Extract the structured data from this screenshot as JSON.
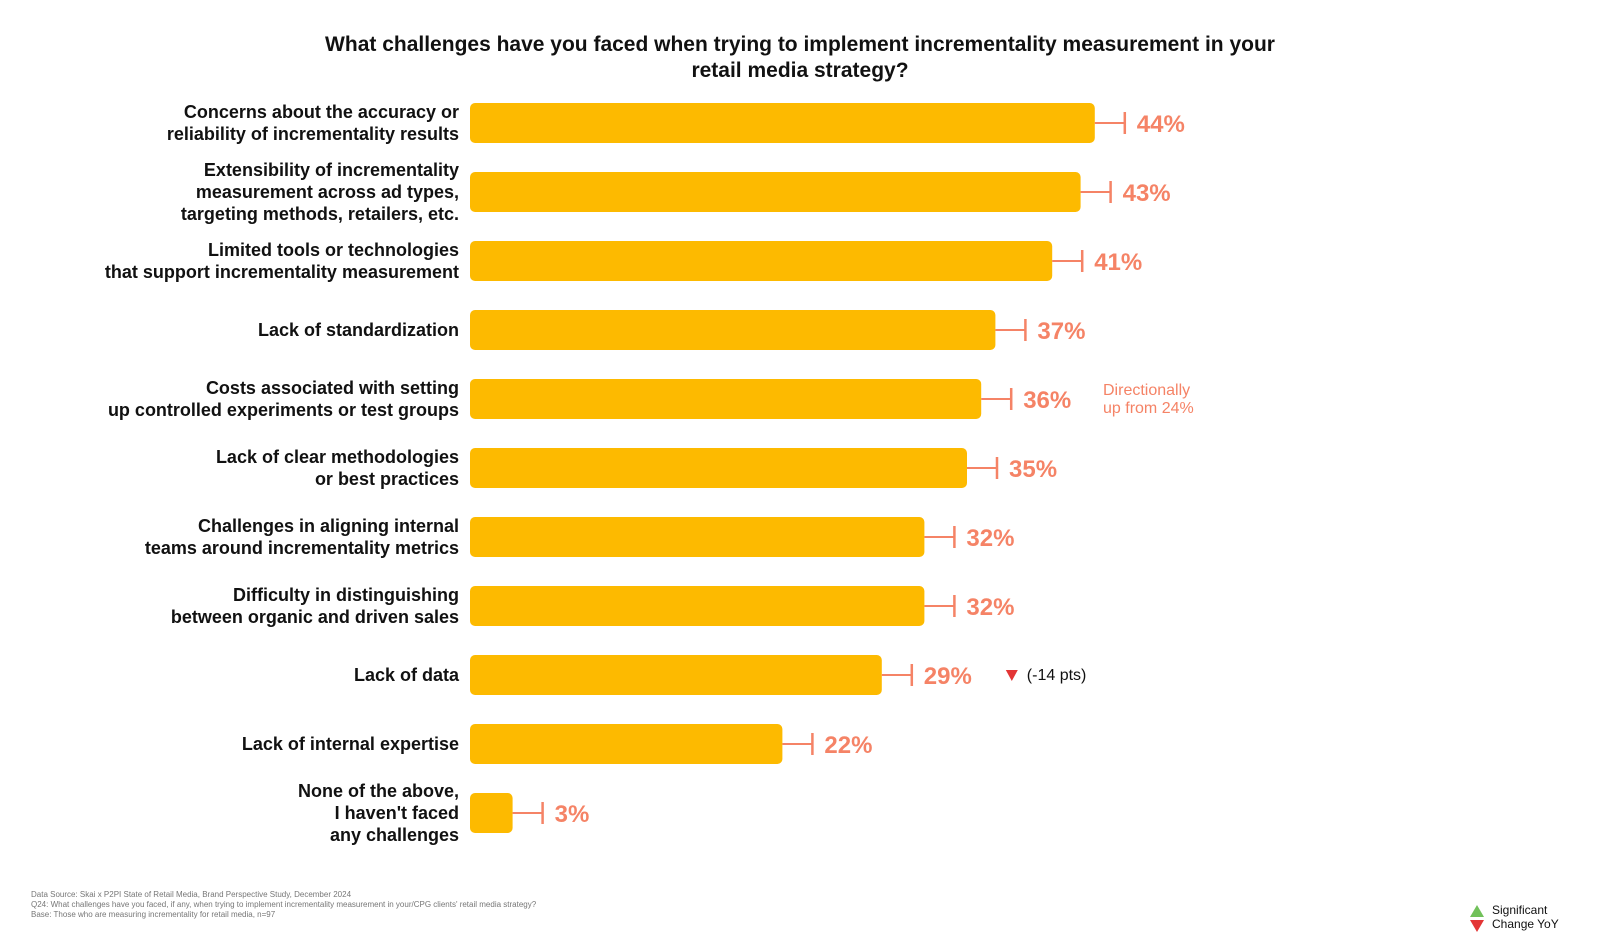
{
  "colors": {
    "bar": "#FDBA00",
    "value": "#F58366",
    "note": "#F58366",
    "down_marker": "#E33535",
    "up_marker": "#71C15A",
    "label": "#111111"
  },
  "chart_data": {
    "type": "bar",
    "orientation": "horizontal",
    "title": "What challenges have you faced when trying to implement incrementality measurement in your\nretail media strategy?",
    "categories": [
      "Concerns about the accuracy or\nreliability of incrementality results",
      "Extensibility of incrementality\nmeasurement across ad types,\ntargeting methods, retailers, etc.",
      "Limited tools or technologies\nthat support incrementality measurement",
      "Lack of standardization",
      "Costs associated with setting\nup controlled experiments or test groups",
      "Lack of clear methodologies\nor best practices",
      "Challenges in aligning internal\nteams around incrementality metrics",
      "Difficulty in distinguishing\nbetween organic and driven sales",
      "Lack of data",
      "Lack of internal expertise",
      "None of the above,\nI haven't faced\nany challenges"
    ],
    "values": [
      44,
      43,
      41,
      37,
      36,
      35,
      32,
      32,
      29,
      22,
      3
    ],
    "value_labels": [
      "44%",
      "43%",
      "41%",
      "37%",
      "36%",
      "35%",
      "32%",
      "32%",
      "29%",
      "22%",
      "3%"
    ],
    "unit": "%",
    "grid": false,
    "annotations": [
      {
        "category_index": 4,
        "text": "Directionally\nup from 24%"
      },
      {
        "category_index": 8,
        "text": "(-14 pts)",
        "marker": "down"
      }
    ]
  },
  "footnotes": [
    "Data Source: Skai x P2PI State of Retail Media, Brand Perspective Study, December 2024",
    "Q24: What challenges have you faced, if any, when trying to implement incrementality measurement in your/CPG clients' retail media strategy?",
    "Base:  Those who are measuring incrementality for retail media, n=97"
  ],
  "legend": {
    "label": "Significant\nChange YoY",
    "up_icon": "triangle-up-icon",
    "down_icon": "triangle-down-icon"
  }
}
